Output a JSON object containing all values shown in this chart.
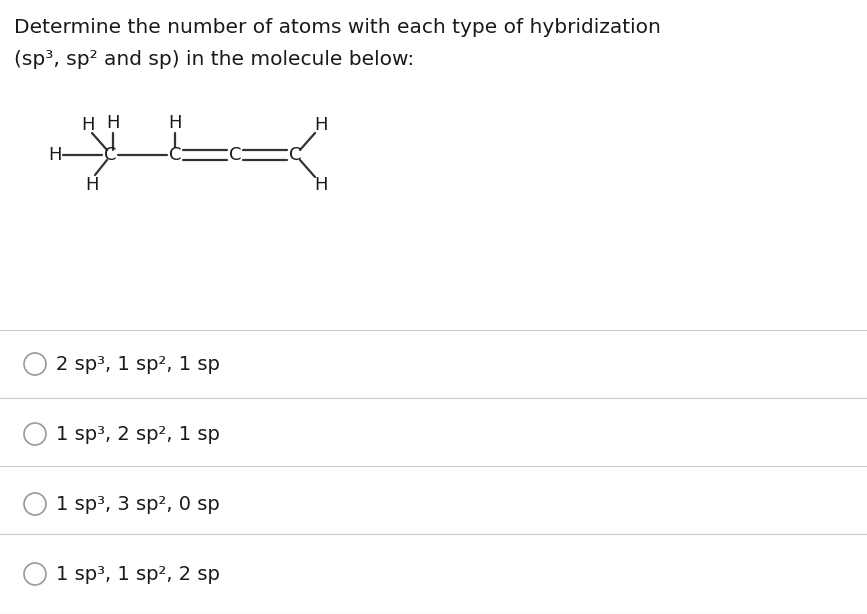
{
  "title_line1": "Determine the number of atoms with each type of hybridization",
  "title_line2": "(sp³, sp² and sp) in the molecule below:",
  "options": [
    "2 sp³, 1 sp², 1 sp",
    "1 sp³, 2 sp², 1 sp",
    "1 sp³, 3 sp², 0 sp",
    "1 sp³, 1 sp², 2 sp"
  ],
  "title_fontsize": 14.5,
  "option_fontsize": 14,
  "molecule_fontsize": 13,
  "bg_color": "#ffffff",
  "text_color": "#1a1a1a",
  "divider_color": "#cccccc",
  "circle_color": "#999999"
}
